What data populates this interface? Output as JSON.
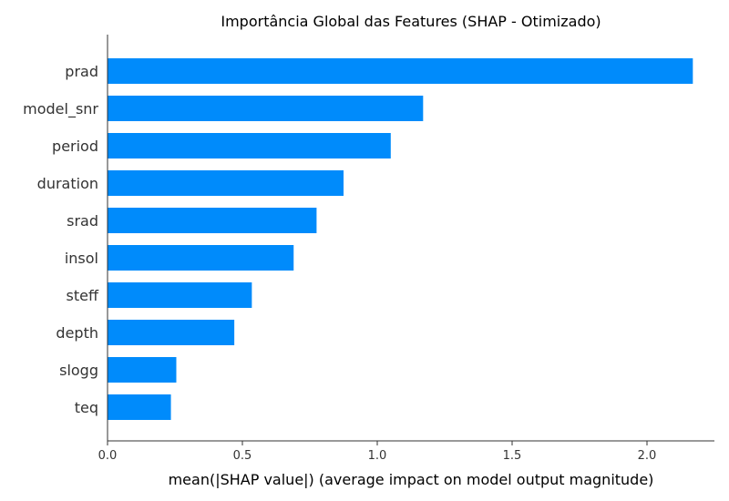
{
  "chart_data": {
    "type": "bar",
    "orientation": "horizontal",
    "title": "Importância Global das Features (SHAP - Otimizado)",
    "xlabel": "mean(|SHAP value|) (average impact on model output magnitude)",
    "ylabel": "",
    "categories": [
      "prad",
      "model_snr",
      "period",
      "duration",
      "srad",
      "insol",
      "steff",
      "depth",
      "slogg",
      "teq"
    ],
    "values": [
      2.17,
      1.17,
      1.05,
      0.875,
      0.775,
      0.69,
      0.535,
      0.47,
      0.255,
      0.235
    ],
    "xlim": [
      0,
      2.25
    ],
    "xticks": [
      0.0,
      0.5,
      1.0,
      1.5,
      2.0
    ],
    "xtick_labels": [
      "0.0",
      "0.5",
      "1.0",
      "1.5",
      "2.0"
    ],
    "bar_color": "#008bfb",
    "grid": false
  }
}
